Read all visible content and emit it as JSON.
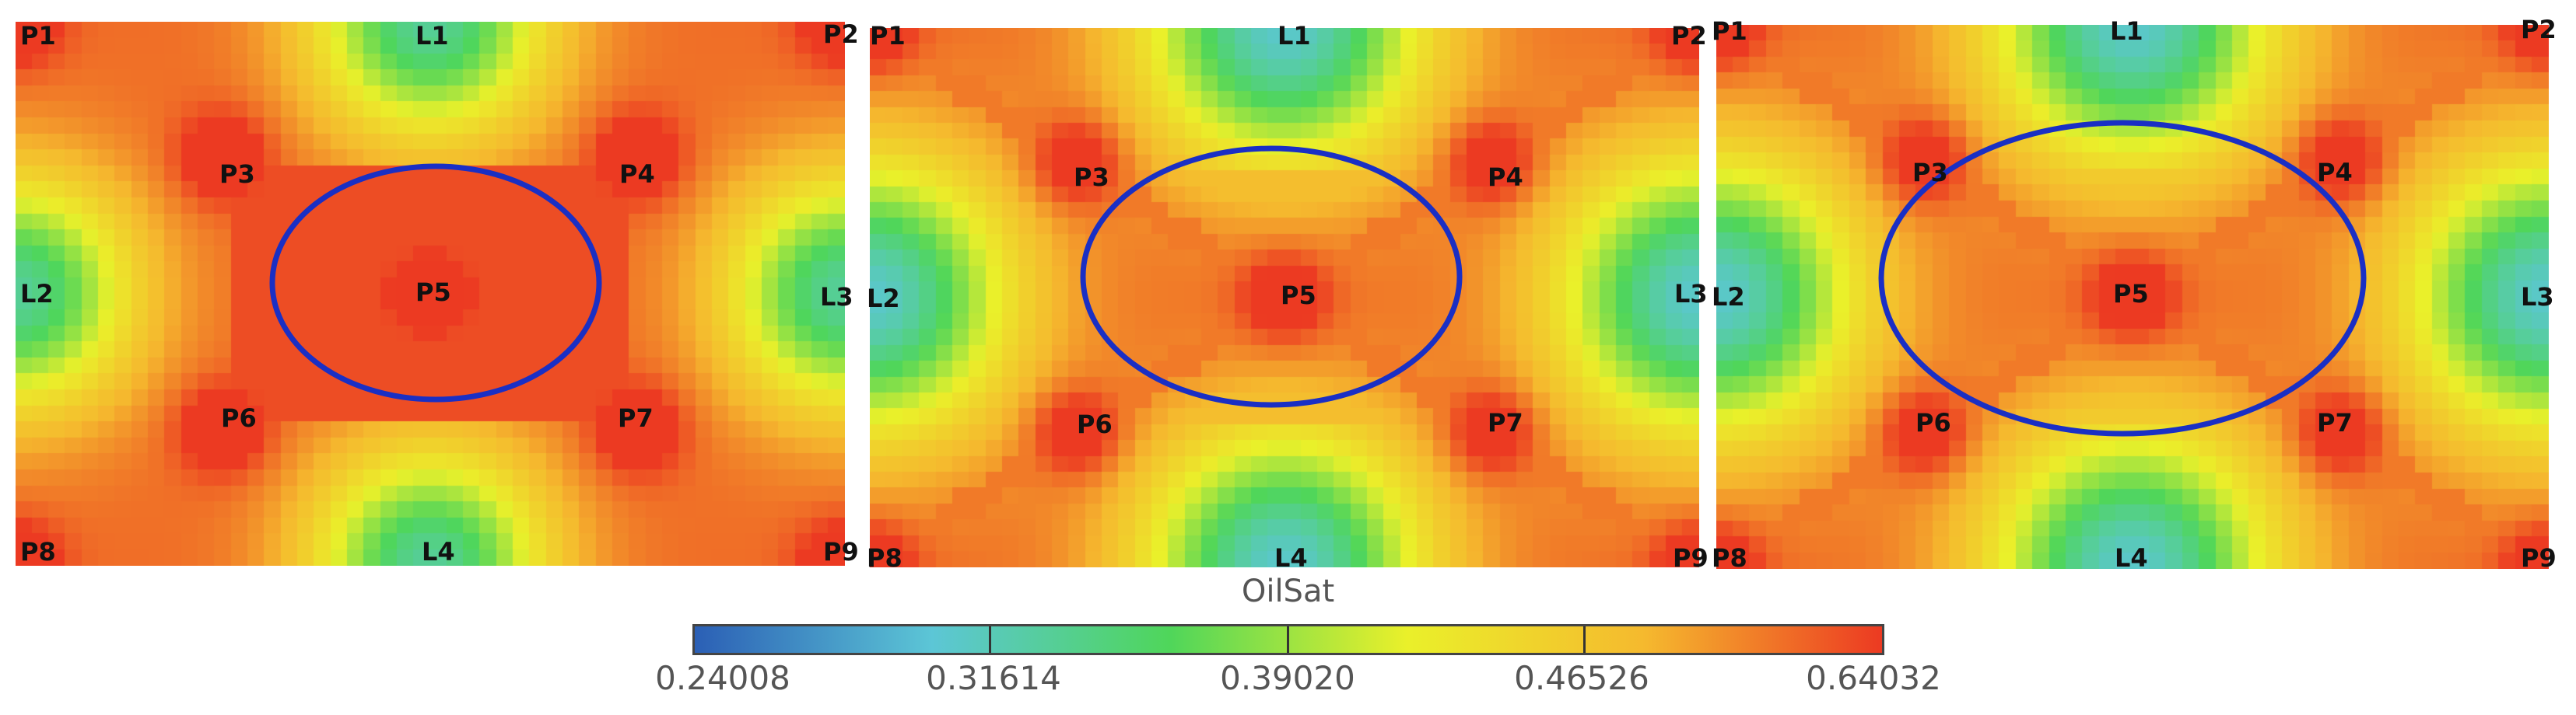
{
  "panels": [
    {
      "id": "case-1",
      "labels": {
        "P1": "P1",
        "P2": "P2",
        "P3": "P3",
        "P4": "P4",
        "P5": "P5",
        "P6": "P6",
        "P7": "P7",
        "P8": "P8",
        "P9": "P9",
        "L1": "L1",
        "L2": "L2",
        "L3": "L3",
        "L4": "L4"
      }
    },
    {
      "id": "case-2",
      "labels": {
        "P1": "P1",
        "P2": "P2",
        "P3": "P3",
        "P4": "P4",
        "P5": "P5",
        "P6": "P6",
        "P7": "P7",
        "P8": "P8",
        "P9": "P9",
        "L1": "L1",
        "L2": "L2",
        "L3": "L3",
        "L4": "L4"
      }
    },
    {
      "id": "case-3",
      "labels": {
        "P1": "P1",
        "P2": "P2",
        "P3": "P3",
        "P4": "P4",
        "P5": "P5",
        "P6": "P6",
        "P7": "P7",
        "P8": "P8",
        "P9": "P9",
        "L1": "L1",
        "L2": "L2",
        "L3": "L3",
        "L4": "L4"
      }
    }
  ],
  "colorbar": {
    "title": "OilSat",
    "ticks": [
      "0.24008",
      "0.31614",
      "0.39020",
      "0.46526",
      "0.64032"
    ],
    "min": 0.24008,
    "max": 0.64032
  },
  "colors": {
    "highlight_ellipse": "#1a2fc4",
    "ramp": [
      "#2b5fb5",
      "#5cc6d6",
      "#4fd65a",
      "#eaf02a",
      "#f5b92e",
      "#ec3a22"
    ]
  }
}
